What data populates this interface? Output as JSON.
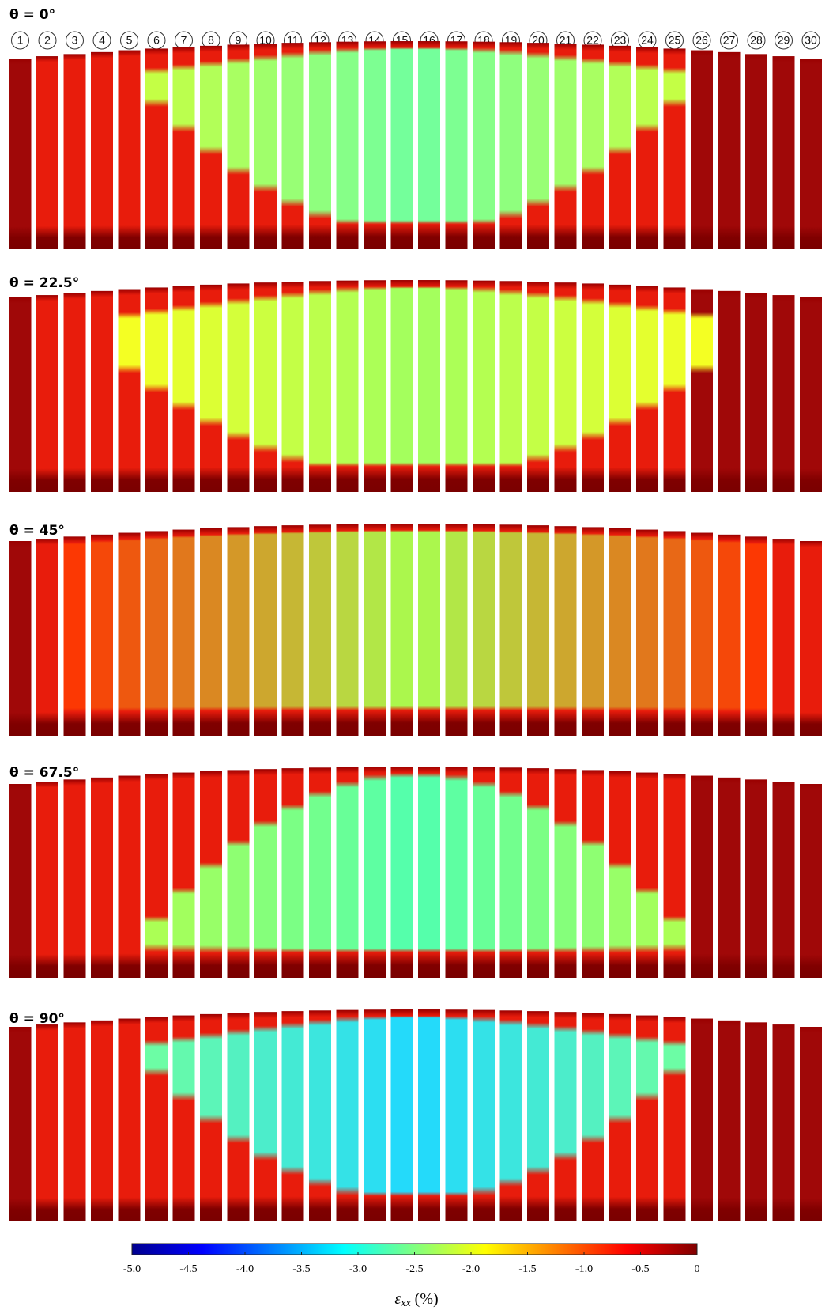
{
  "chart_data": {
    "type": "heatmap",
    "panels": [
      {
        "title": "θ = 0°"
      },
      {
        "title": "θ = 22.5°"
      },
      {
        "title": "θ = 45°"
      },
      {
        "title": "θ = 67.5°"
      },
      {
        "title": "θ = 90°"
      }
    ],
    "categories": [
      "1",
      "2",
      "3",
      "4",
      "5",
      "6",
      "7",
      "8",
      "9",
      "10",
      "11",
      "12",
      "13",
      "14",
      "15",
      "16",
      "17",
      "18",
      "19",
      "20",
      "21",
      "22",
      "23",
      "24",
      "25",
      "26",
      "27",
      "28",
      "29",
      "30"
    ],
    "colorbar": {
      "symbol": "ε",
      "subscript": "xx",
      "unit": "(%)",
      "lim": [
        -5,
        0
      ],
      "ticks": [
        {
          "value": -5,
          "label": "-5.0"
        },
        -4.5,
        {
          "value": -4,
          "label": "-4.0"
        },
        -3.5,
        {
          "value": -3,
          "label": "-3.0"
        },
        -2.5,
        {
          "value": -2,
          "label": "-2.0"
        },
        -1.5,
        {
          "value": -1,
          "label": "-1.0"
        },
        -0.5,
        0
      ]
    }
  }
}
